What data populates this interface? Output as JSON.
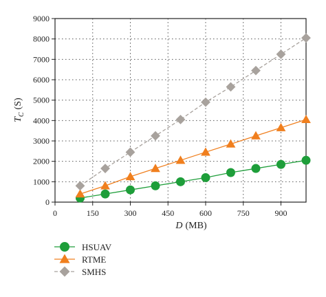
{
  "chart_data": {
    "type": "line",
    "xlabel_main": "D",
    "xlabel_unit": "(MB)",
    "ylabel_main": "T",
    "ylabel_sub": "C",
    "ylabel_unit": "(S)",
    "xlim": [
      0,
      1000
    ],
    "ylim": [
      0,
      9000
    ],
    "x_ticks": [
      0,
      150,
      300,
      450,
      600,
      750,
      900
    ],
    "y_ticks": [
      0,
      1000,
      2000,
      3000,
      4000,
      5000,
      6000,
      7000,
      8000,
      9000
    ],
    "grid": true,
    "legend_position": "below-left",
    "x": [
      100,
      200,
      300,
      400,
      500,
      600,
      700,
      800,
      900,
      1000
    ],
    "series": [
      {
        "name": "HSUAV",
        "marker": "circle",
        "line_style": "solid",
        "color": "#1e9e3a",
        "values": [
          200,
          400,
          600,
          800,
          1000,
          1200,
          1450,
          1650,
          1850,
          2050
        ]
      },
      {
        "name": "RTME",
        "marker": "triangle",
        "line_style": "solid",
        "color": "#f07f1e",
        "values": [
          400,
          800,
          1250,
          1650,
          2050,
          2450,
          2850,
          3250,
          3650,
          4050
        ]
      },
      {
        "name": "SMHS",
        "marker": "diamond",
        "line_style": "dashed",
        "color": "#a8a29d",
        "values": [
          800,
          1650,
          2450,
          3250,
          4050,
          4900,
          5650,
          6450,
          7250,
          8050
        ]
      }
    ]
  }
}
